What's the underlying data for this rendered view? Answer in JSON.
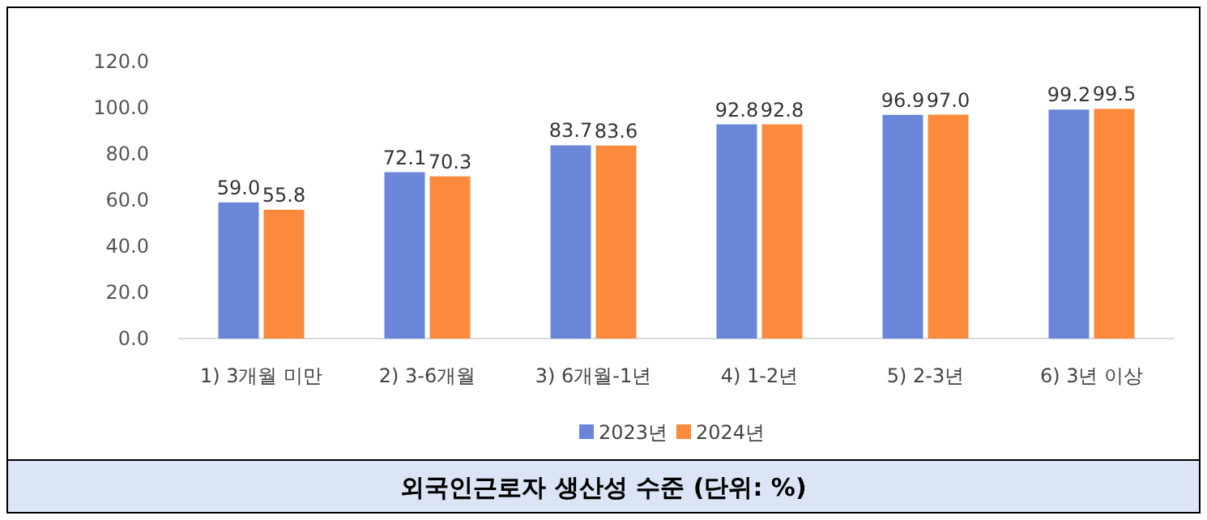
{
  "chart_data": {
    "type": "bar",
    "title": "외국인근로자 생산성 수준 (단위: %)",
    "categories": [
      "1) 3개월 미만",
      "2) 3-6개월",
      "3) 6개월-1년",
      "4) 1-2년",
      "5) 2-3년",
      "6) 3년 이상"
    ],
    "series": [
      {
        "name": "2023년",
        "color": "#6a86d8",
        "values": [
          59.0,
          72.1,
          83.7,
          92.8,
          96.9,
          99.2
        ],
        "value_labels": [
          "59.0",
          "72.1",
          "83.7",
          "92.8",
          "96.9",
          "99.2"
        ]
      },
      {
        "name": "2024년",
        "color": "#fb8a3c",
        "values": [
          55.8,
          70.3,
          83.6,
          92.8,
          97.0,
          99.5
        ],
        "value_labels": [
          "55.8",
          "70.3",
          "83.6",
          "92.8",
          "97.0",
          "99.5"
        ]
      }
    ],
    "ylim": [
      0,
      120
    ],
    "yticks": [
      {
        "value": 0,
        "label": "0.0"
      },
      {
        "value": 20,
        "label": "20.0"
      },
      {
        "value": 40,
        "label": "40.0"
      },
      {
        "value": 60,
        "label": "60.0"
      },
      {
        "value": 80,
        "label": "80.0"
      },
      {
        "value": 100,
        "label": "100.0"
      },
      {
        "value": 120,
        "label": "120.0"
      }
    ],
    "legend": "bottom"
  }
}
